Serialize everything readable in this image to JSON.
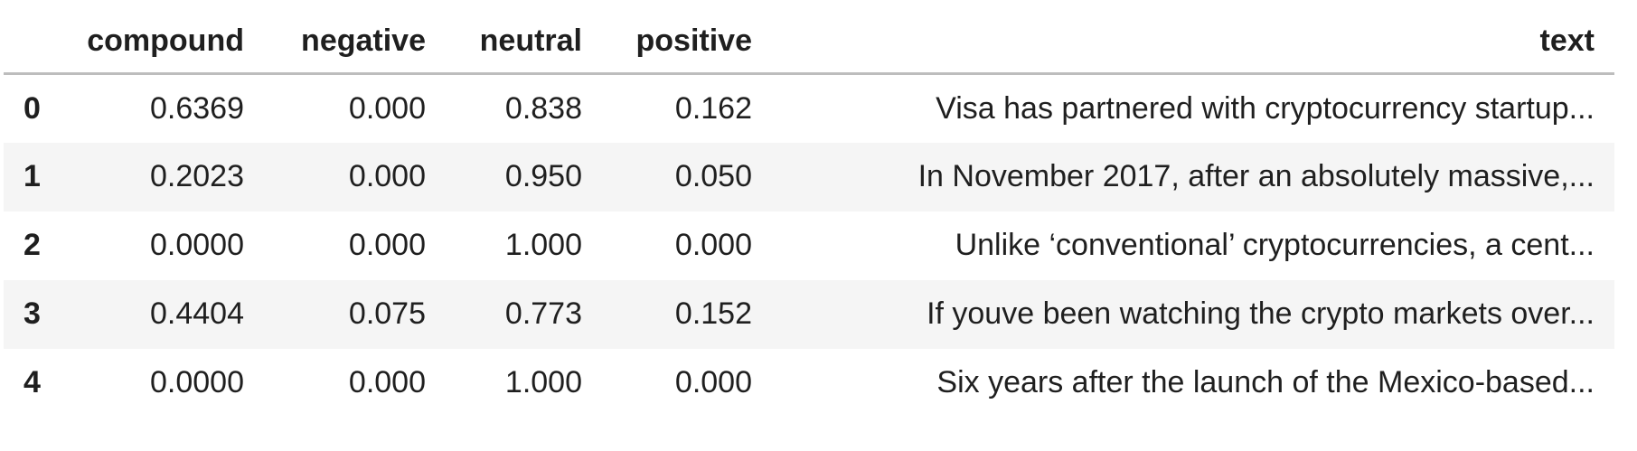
{
  "table": {
    "columns": [
      "",
      "compound",
      "negative",
      "neutral",
      "positive",
      "text"
    ],
    "rows": [
      {
        "index": "0",
        "compound": "0.6369",
        "negative": "0.000",
        "neutral": "0.838",
        "positive": "0.162",
        "text": "Visa has partnered with cryptocurrency startup..."
      },
      {
        "index": "1",
        "compound": "0.2023",
        "negative": "0.000",
        "neutral": "0.950",
        "positive": "0.050",
        "text": "In November 2017, after an absolutely massive,..."
      },
      {
        "index": "2",
        "compound": "0.0000",
        "negative": "0.000",
        "neutral": "1.000",
        "positive": "0.000",
        "text": "Unlike ‘conventional’ cryptocurrencies, a cent..."
      },
      {
        "index": "3",
        "compound": "0.4404",
        "negative": "0.075",
        "neutral": "0.773",
        "positive": "0.152",
        "text": "If youve been watching the crypto markets over..."
      },
      {
        "index": "4",
        "compound": "0.0000",
        "negative": "0.000",
        "neutral": "1.000",
        "positive": "0.000",
        "text": "Six years after the launch of the Mexico-based..."
      }
    ]
  }
}
